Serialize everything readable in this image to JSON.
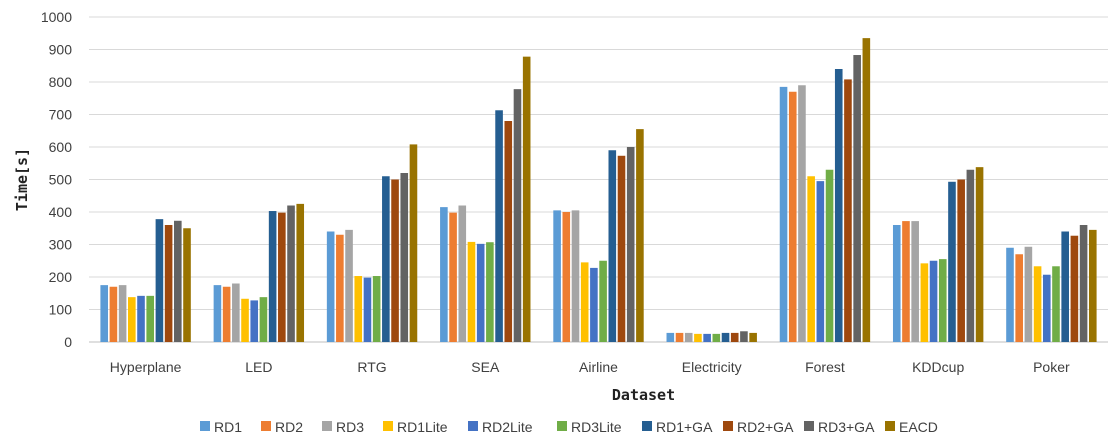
{
  "chart_data": {
    "type": "bar",
    "title": "",
    "xlabel": "Dataset",
    "ylabel": "Time[s]",
    "ylim": [
      0,
      1000
    ],
    "yticks": [
      0,
      100,
      200,
      300,
      400,
      500,
      600,
      700,
      800,
      900,
      1000
    ],
    "grid": true,
    "legend_position": "bottom",
    "categories": [
      "Hyperplane",
      "LED",
      "RTG",
      "SEA",
      "Airline",
      "Electricity",
      "Forest",
      "KDDcup",
      "Poker"
    ],
    "series": [
      {
        "name": "RD1",
        "color": "#5b9bd5",
        "values": [
          175,
          175,
          340,
          415,
          405,
          28,
          785,
          360,
          290
        ]
      },
      {
        "name": "RD2",
        "color": "#ed7d31",
        "values": [
          170,
          170,
          330,
          398,
          400,
          28,
          770,
          372,
          270
        ]
      },
      {
        "name": "RD3",
        "color": "#a5a5a5",
        "values": [
          175,
          180,
          345,
          420,
          405,
          28,
          790,
          372,
          293
        ]
      },
      {
        "name": "RD1Lite",
        "color": "#ffc000",
        "values": [
          138,
          133,
          203,
          308,
          245,
          25,
          510,
          242,
          233
        ]
      },
      {
        "name": "RD2Lite",
        "color": "#4472c4",
        "values": [
          142,
          128,
          198,
          302,
          228,
          25,
          495,
          250,
          207
        ]
      },
      {
        "name": "RD3Lite",
        "color": "#70ad47",
        "values": [
          142,
          138,
          203,
          307,
          250,
          25,
          530,
          255,
          233
        ]
      },
      {
        "name": "RD1+GA",
        "color": "#255e91",
        "values": [
          378,
          403,
          510,
          713,
          590,
          28,
          840,
          493,
          340
        ]
      },
      {
        "name": "RD2+GA",
        "color": "#9e480e",
        "values": [
          360,
          398,
          500,
          680,
          573,
          28,
          808,
          500,
          327
        ]
      },
      {
        "name": "RD3+GA",
        "color": "#636363",
        "values": [
          373,
          420,
          520,
          778,
          600,
          33,
          883,
          530,
          360
        ]
      },
      {
        "name": "EACD",
        "color": "#997300",
        "values": [
          350,
          425,
          608,
          878,
          655,
          28,
          935,
          538,
          345
        ]
      }
    ]
  }
}
